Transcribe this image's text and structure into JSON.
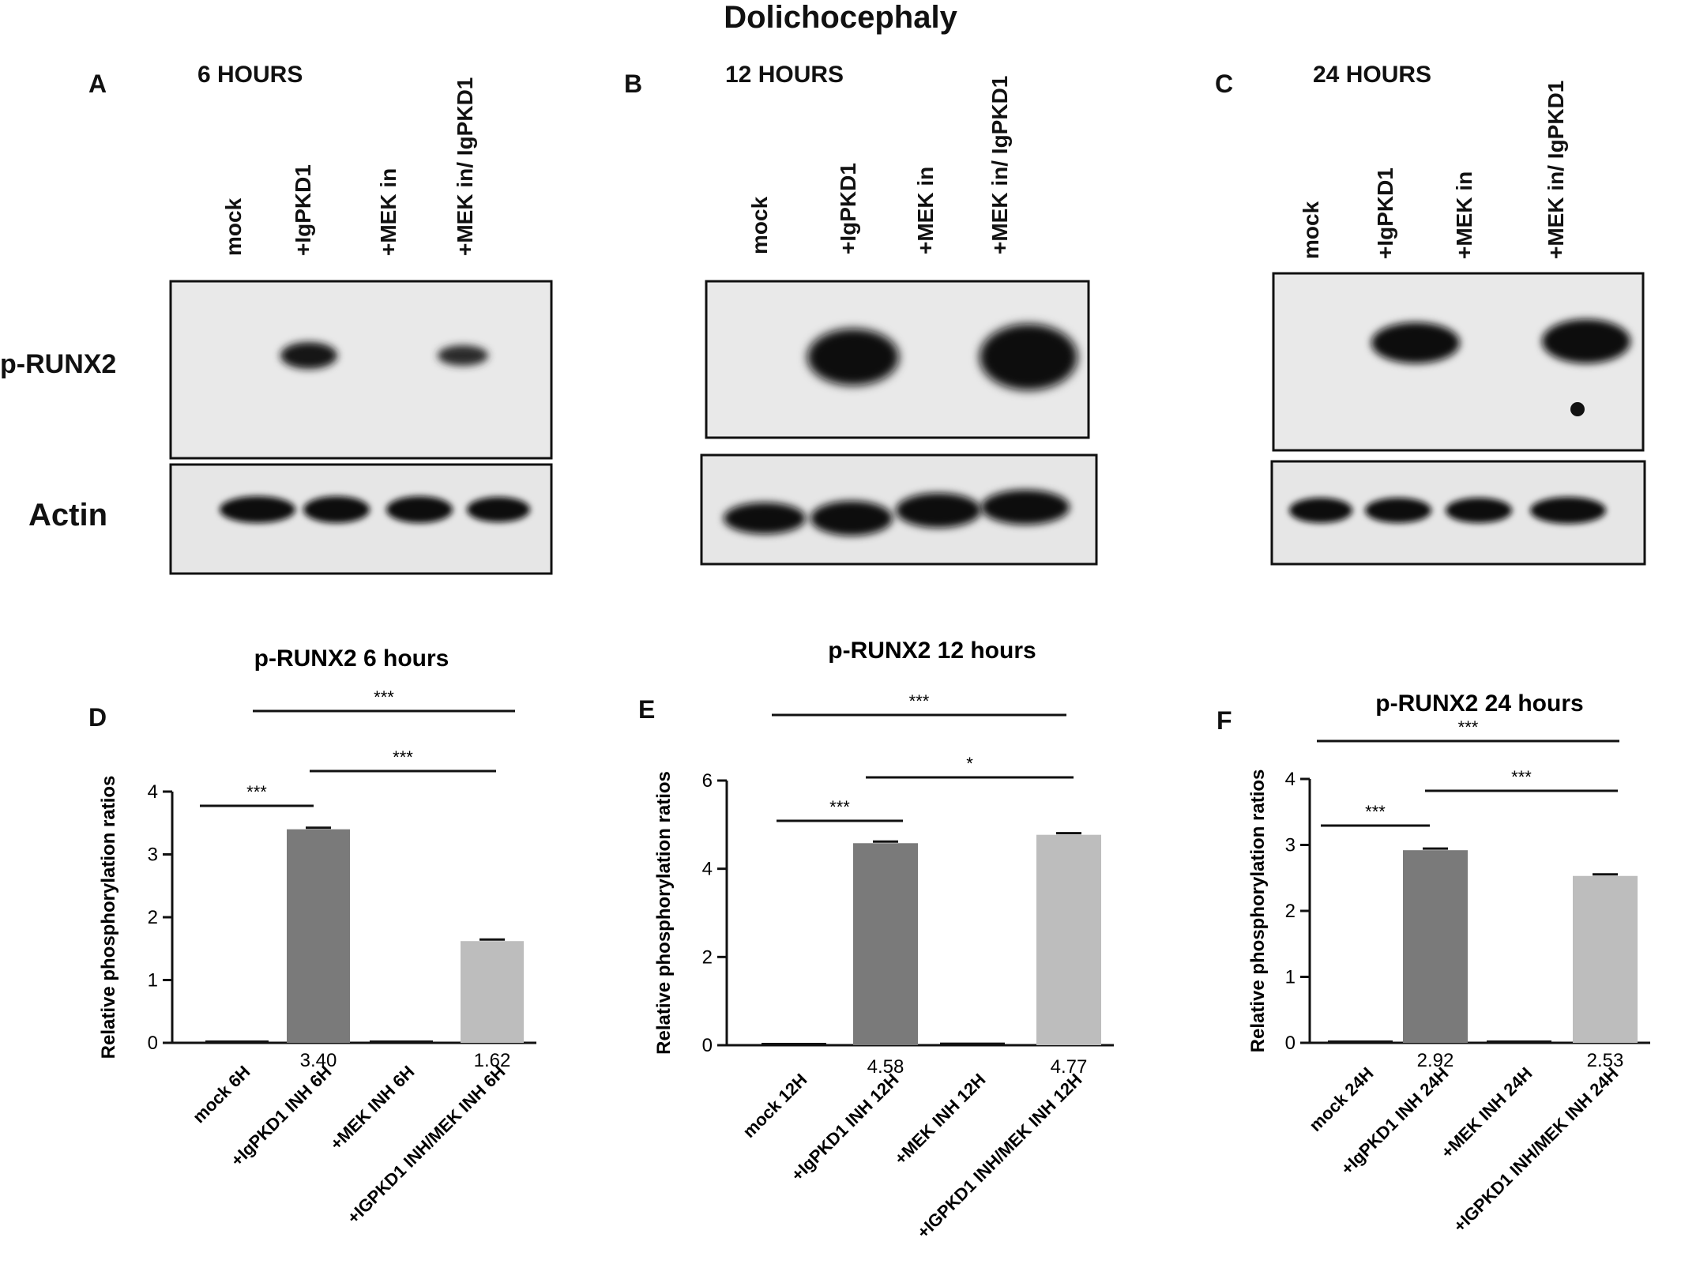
{
  "title": "Dolichocephaly",
  "row_labels": {
    "p_runx2": "p-RUNX2",
    "actin": "Actin"
  },
  "blots": [
    {
      "letter": "A",
      "time": "6 HOURS",
      "lanes": [
        "mock",
        "+IgPKD1",
        "+MEK in",
        "+MEK in/ IgPKD1"
      ]
    },
    {
      "letter": "B",
      "time": "12 HOURS",
      "lanes": [
        "mock",
        "+IgPKD1",
        "+MEK in",
        "+MEK in/ IgPKD1"
      ]
    },
    {
      "letter": "C",
      "time": "24 HOURS",
      "lanes": [
        "mock",
        "+IgPKD1",
        "+MEK in",
        "+MEK in/ IgPKD1"
      ]
    }
  ],
  "colors": {
    "dark_bar": "#7a7a7a",
    "light_bar": "#bdbdbd",
    "axis": "#111111",
    "band": "#111111"
  },
  "chart_data": [
    {
      "type": "bar",
      "letter": "D",
      "title": "p-RUNX2 6 hours",
      "ylabel": "Relative phosphorylation ratios",
      "xlabel": "",
      "categories": [
        "mock 6H",
        "+IgPKD1 INH 6H",
        "+MEK INH 6H",
        "+IGPKD1 INH/MEK INH 6H"
      ],
      "values": [
        0.02,
        3.4,
        0.03,
        1.62
      ],
      "value_labels": [
        "",
        "3.40",
        "",
        "1.62"
      ],
      "ylim": [
        0,
        4
      ],
      "yticks": [
        "0",
        "1",
        "2",
        "3",
        "4"
      ],
      "ytick_values": [
        0,
        1,
        2,
        3,
        4
      ],
      "significance": [
        {
          "from": 0,
          "to": 1,
          "label": "***"
        },
        {
          "from": 1,
          "to": 3,
          "label": "***"
        },
        {
          "from": 1,
          "to": 3,
          "label": "***"
        }
      ]
    },
    {
      "type": "bar",
      "letter": "E",
      "title": "p-RUNX2 12 hours",
      "ylabel": "Relative phosphorylation ratios",
      "xlabel": "",
      "categories": [
        "mock 12H",
        "+IgPKD1 INH 12H",
        "+MEK INH 12H",
        "+IGPKD1 INH/MEK INH 12H"
      ],
      "values": [
        0.05,
        4.58,
        0.06,
        4.77
      ],
      "value_labels": [
        "",
        "4.58",
        "",
        "4.77"
      ],
      "ylim": [
        0,
        6
      ],
      "yticks": [
        "0",
        "2",
        "4",
        "6"
      ],
      "ytick_values": [
        0,
        2,
        4,
        6
      ],
      "significance": [
        {
          "from": 0,
          "to": 1,
          "label": "***"
        },
        {
          "from": 1,
          "to": 3,
          "label": "*"
        },
        {
          "from": 0,
          "to": 3,
          "label": "***"
        }
      ]
    },
    {
      "type": "bar",
      "letter": "F",
      "title": "p-RUNX2 24 hours",
      "ylabel": "Relative phosphorylation ratios",
      "xlabel": "",
      "categories": [
        "mock 24H",
        "+IgPKD1 INH 24H",
        "+MEK INH 24H",
        "+IGPKD1 INH/MEK INH 24H"
      ],
      "values": [
        0.0,
        2.92,
        0.0,
        2.53
      ],
      "value_labels": [
        "",
        "2.92",
        "",
        "2.53"
      ],
      "ylim": [
        0,
        4
      ],
      "yticks": [
        "0",
        "1",
        "2",
        "3",
        "4"
      ],
      "ytick_values": [
        0,
        1,
        2,
        3,
        4
      ],
      "significance": [
        {
          "from": 0,
          "to": 1,
          "label": "***"
        },
        {
          "from": 1,
          "to": 3,
          "label": "***"
        },
        {
          "from": 0,
          "to": 3,
          "label": "***"
        }
      ]
    }
  ]
}
